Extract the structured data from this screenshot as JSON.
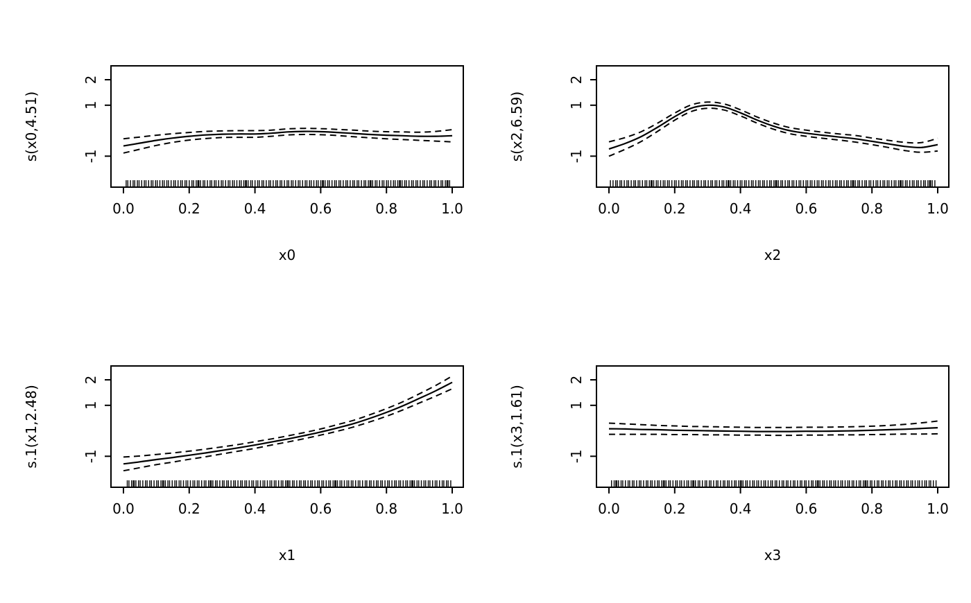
{
  "figure": {
    "background": "#ffffff",
    "line_color": "#000000",
    "description": "2x2 grid of GAM smooth-term plots with solid fit lines, dashed confidence bands and rug marks"
  },
  "chart_data": [
    {
      "type": "line",
      "panel": "top-left",
      "xlabel": "x0",
      "ylabel": "s(x0,4.51)",
      "xlim": [
        0,
        1
      ],
      "ylim": [
        -2.2,
        2.55
      ],
      "grid": false,
      "legend": "none",
      "xticks": [
        0.0,
        0.2,
        0.4,
        0.6,
        0.8,
        1.0
      ],
      "xtick_labels": [
        "0.0",
        "0.2",
        "0.4",
        "0.6",
        "0.8",
        "1.0"
      ],
      "yticks": [
        -1,
        1,
        2
      ],
      "ytick_labels": [
        "-1",
        "1",
        "2"
      ],
      "x": [
        0,
        0.05,
        0.1,
        0.15,
        0.2,
        0.25,
        0.3,
        0.35,
        0.4,
        0.45,
        0.5,
        0.55,
        0.6,
        0.65,
        0.7,
        0.75,
        0.8,
        0.85,
        0.9,
        0.95,
        1
      ],
      "series": [
        {
          "name": "fit",
          "style": "solid",
          "values": [
            -0.6,
            -0.49,
            -0.38,
            -0.29,
            -0.22,
            -0.17,
            -0.14,
            -0.13,
            -0.13,
            -0.1,
            -0.05,
            -0.03,
            -0.04,
            -0.07,
            -0.11,
            -0.15,
            -0.18,
            -0.2,
            -0.22,
            -0.22,
            -0.2
          ]
        },
        {
          "name": "upper-ci",
          "style": "dashed",
          "values": [
            -0.32,
            -0.25,
            -0.18,
            -0.12,
            -0.07,
            -0.03,
            -0.01,
            0.0,
            0.0,
            0.02,
            0.07,
            0.09,
            0.08,
            0.05,
            0.02,
            -0.02,
            -0.04,
            -0.05,
            -0.06,
            -0.03,
            0.04
          ]
        },
        {
          "name": "lower-ci",
          "style": "dashed",
          "values": [
            -0.88,
            -0.73,
            -0.58,
            -0.46,
            -0.37,
            -0.31,
            -0.27,
            -0.26,
            -0.26,
            -0.22,
            -0.17,
            -0.15,
            -0.16,
            -0.19,
            -0.24,
            -0.28,
            -0.32,
            -0.35,
            -0.38,
            -0.41,
            -0.44
          ]
        }
      ],
      "rug": {
        "n": 150,
        "seed": 1
      }
    },
    {
      "type": "line",
      "panel": "top-right",
      "xlabel": "x2",
      "ylabel": "s(x2,6.59)",
      "xlim": [
        0,
        1
      ],
      "ylim": [
        -2.2,
        2.55
      ],
      "grid": false,
      "legend": "none",
      "xticks": [
        0.0,
        0.2,
        0.4,
        0.6,
        0.8,
        1.0
      ],
      "xtick_labels": [
        "0.0",
        "0.2",
        "0.4",
        "0.6",
        "0.8",
        "1.0"
      ],
      "yticks": [
        -1,
        1,
        2
      ],
      "ytick_labels": [
        "-1",
        "1",
        "2"
      ],
      "x": [
        0,
        0.05,
        0.1,
        0.15,
        0.2,
        0.25,
        0.3,
        0.35,
        0.4,
        0.45,
        0.5,
        0.55,
        0.6,
        0.65,
        0.7,
        0.75,
        0.8,
        0.85,
        0.9,
        0.95,
        1
      ],
      "series": [
        {
          "name": "fit",
          "style": "solid",
          "values": [
            -0.72,
            -0.5,
            -0.22,
            0.15,
            0.55,
            0.88,
            1.0,
            0.93,
            0.7,
            0.42,
            0.18,
            0.0,
            -0.1,
            -0.18,
            -0.25,
            -0.32,
            -0.42,
            -0.52,
            -0.62,
            -0.66,
            -0.55
          ]
        },
        {
          "name": "upper-ci",
          "style": "dashed",
          "values": [
            -0.44,
            -0.27,
            -0.03,
            0.31,
            0.69,
            1.01,
            1.12,
            1.05,
            0.82,
            0.54,
            0.3,
            0.12,
            0.02,
            -0.06,
            -0.13,
            -0.19,
            -0.29,
            -0.38,
            -0.46,
            -0.47,
            -0.3
          ]
        },
        {
          "name": "lower-ci",
          "style": "dashed",
          "values": [
            -1.0,
            -0.73,
            -0.41,
            -0.01,
            0.41,
            0.75,
            0.88,
            0.81,
            0.58,
            0.3,
            0.06,
            -0.12,
            -0.22,
            -0.3,
            -0.37,
            -0.45,
            -0.55,
            -0.66,
            -0.78,
            -0.85,
            -0.8
          ]
        }
      ],
      "rug": {
        "n": 150,
        "seed": 2
      }
    },
    {
      "type": "line",
      "panel": "bottom-left",
      "xlabel": "x1",
      "ylabel": "s.1(x1,2.48)",
      "xlim": [
        0,
        1
      ],
      "ylim": [
        -2.2,
        2.55
      ],
      "grid": false,
      "legend": "none",
      "xticks": [
        0.0,
        0.2,
        0.4,
        0.6,
        0.8,
        1.0
      ],
      "xtick_labels": [
        "0.0",
        "0.2",
        "0.4",
        "0.6",
        "0.8",
        "1.0"
      ],
      "yticks": [
        -1,
        1,
        2
      ],
      "ytick_labels": [
        "-1",
        "1",
        "2"
      ],
      "x": [
        0,
        0.05,
        0.1,
        0.15,
        0.2,
        0.25,
        0.3,
        0.35,
        0.4,
        0.45,
        0.5,
        0.55,
        0.6,
        0.65,
        0.7,
        0.75,
        0.8,
        0.85,
        0.9,
        0.95,
        1
      ],
      "series": [
        {
          "name": "fit",
          "style": "solid",
          "values": [
            -1.3,
            -1.22,
            -1.13,
            -1.05,
            -0.96,
            -0.87,
            -0.77,
            -0.67,
            -0.56,
            -0.44,
            -0.32,
            -0.19,
            -0.05,
            0.11,
            0.28,
            0.49,
            0.72,
            0.98,
            1.27,
            1.57,
            1.9
          ]
        },
        {
          "name": "upper-ci",
          "style": "dashed",
          "values": [
            -1.03,
            -0.99,
            -0.93,
            -0.87,
            -0.8,
            -0.72,
            -0.63,
            -0.54,
            -0.43,
            -0.32,
            -0.2,
            -0.07,
            0.07,
            0.24,
            0.41,
            0.63,
            0.87,
            1.14,
            1.45,
            1.78,
            2.15
          ]
        },
        {
          "name": "lower-ci",
          "style": "dashed",
          "values": [
            -1.57,
            -1.45,
            -1.33,
            -1.23,
            -1.12,
            -1.02,
            -0.91,
            -0.8,
            -0.69,
            -0.56,
            -0.44,
            -0.31,
            -0.17,
            -0.02,
            0.15,
            0.35,
            0.57,
            0.82,
            1.09,
            1.36,
            1.65
          ]
        }
      ],
      "rug": {
        "n": 150,
        "seed": 3
      }
    },
    {
      "type": "line",
      "panel": "bottom-right",
      "xlabel": "x3",
      "ylabel": "s.1(x3,1.61)",
      "xlim": [
        0,
        1
      ],
      "ylim": [
        -2.2,
        2.55
      ],
      "grid": false,
      "legend": "none",
      "xticks": [
        0.0,
        0.2,
        0.4,
        0.6,
        0.8,
        1.0
      ],
      "xtick_labels": [
        "0.0",
        "0.2",
        "0.4",
        "0.6",
        "0.8",
        "1.0"
      ],
      "yticks": [
        -1,
        1,
        2
      ],
      "ytick_labels": [
        "-1",
        "1",
        "2"
      ],
      "x": [
        0,
        0.05,
        0.1,
        0.15,
        0.2,
        0.25,
        0.3,
        0.35,
        0.4,
        0.45,
        0.5,
        0.55,
        0.6,
        0.65,
        0.7,
        0.75,
        0.8,
        0.85,
        0.9,
        0.95,
        1
      ],
      "series": [
        {
          "name": "fit",
          "style": "solid",
          "values": [
            0.08,
            0.07,
            0.05,
            0.04,
            0.02,
            0.01,
            0.0,
            -0.01,
            -0.02,
            -0.03,
            -0.03,
            -0.03,
            -0.02,
            -0.02,
            -0.01,
            0.0,
            0.02,
            0.04,
            0.06,
            0.09,
            0.12
          ]
        },
        {
          "name": "upper-ci",
          "style": "dashed",
          "values": [
            0.3,
            0.27,
            0.24,
            0.21,
            0.19,
            0.17,
            0.16,
            0.15,
            0.14,
            0.13,
            0.13,
            0.13,
            0.14,
            0.14,
            0.15,
            0.16,
            0.18,
            0.21,
            0.25,
            0.31,
            0.38
          ]
        },
        {
          "name": "lower-ci",
          "style": "dashed",
          "values": [
            -0.14,
            -0.14,
            -0.14,
            -0.14,
            -0.15,
            -0.15,
            -0.16,
            -0.16,
            -0.17,
            -0.17,
            -0.18,
            -0.18,
            -0.17,
            -0.17,
            -0.16,
            -0.16,
            -0.15,
            -0.14,
            -0.13,
            -0.13,
            -0.12
          ]
        }
      ],
      "rug": {
        "n": 150,
        "seed": 4
      }
    }
  ]
}
